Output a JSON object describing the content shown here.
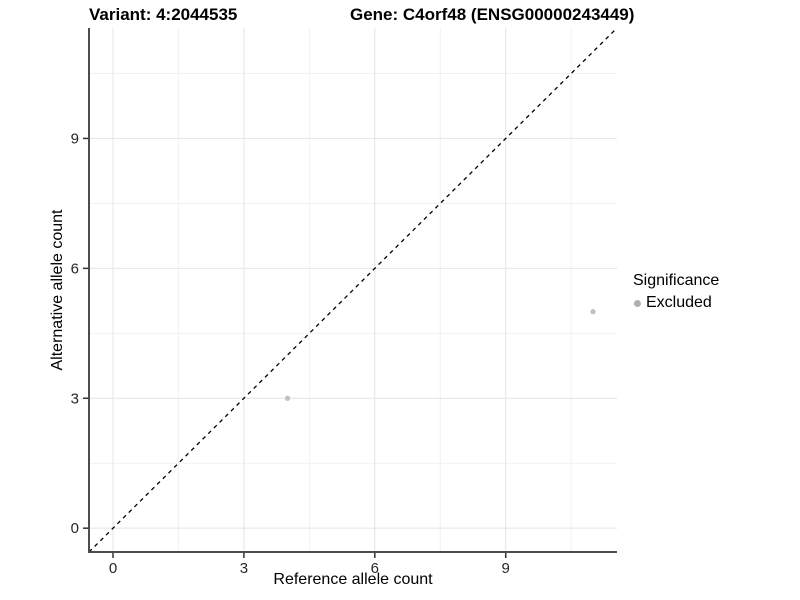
{
  "title": {
    "variant": "Variant: 4:2044535",
    "gene": "Gene: C4orf48 (ENSG00000243449)"
  },
  "axes": {
    "x_label": "Reference allele count",
    "y_label": "Alternative allele count"
  },
  "legend": {
    "title": "Significance",
    "position": "right",
    "items": [
      {
        "label": "Excluded",
        "color": "#b0b0b0",
        "marker": "dot-icon"
      }
    ]
  },
  "chart_data": {
    "type": "scatter",
    "title": "Variant: 4:2044535",
    "subtitle": "Gene: C4orf48 (ENSG00000243449)",
    "xlabel": "Reference allele count",
    "ylabel": "Alternative allele count",
    "xlim": [
      -0.55,
      11.55
    ],
    "ylim": [
      -0.55,
      11.55
    ],
    "x_ticks": [
      0,
      3,
      6,
      9
    ],
    "y_ticks": [
      0,
      3,
      6,
      9
    ],
    "x_minor_ticks": [
      1.5,
      4.5,
      7.5,
      10.5
    ],
    "y_minor_ticks": [
      1.5,
      4.5,
      7.5,
      10.5
    ],
    "grid": true,
    "legend_position": "right",
    "identity_line": {
      "style": "dashed",
      "slope": 1,
      "intercept": 0,
      "color": "#000000"
    },
    "series": [
      {
        "name": "Excluded",
        "color": "#c0c0c0",
        "points": [
          {
            "x": 4,
            "y": 3
          },
          {
            "x": 11,
            "y": 5
          }
        ]
      }
    ],
    "colors": {
      "grid_major": "#e4e4e4",
      "grid_minor": "#f1f1f1",
      "axis_line": "#4d4d4d",
      "tick_mark": "#333333",
      "tick_label": "#262626"
    }
  }
}
